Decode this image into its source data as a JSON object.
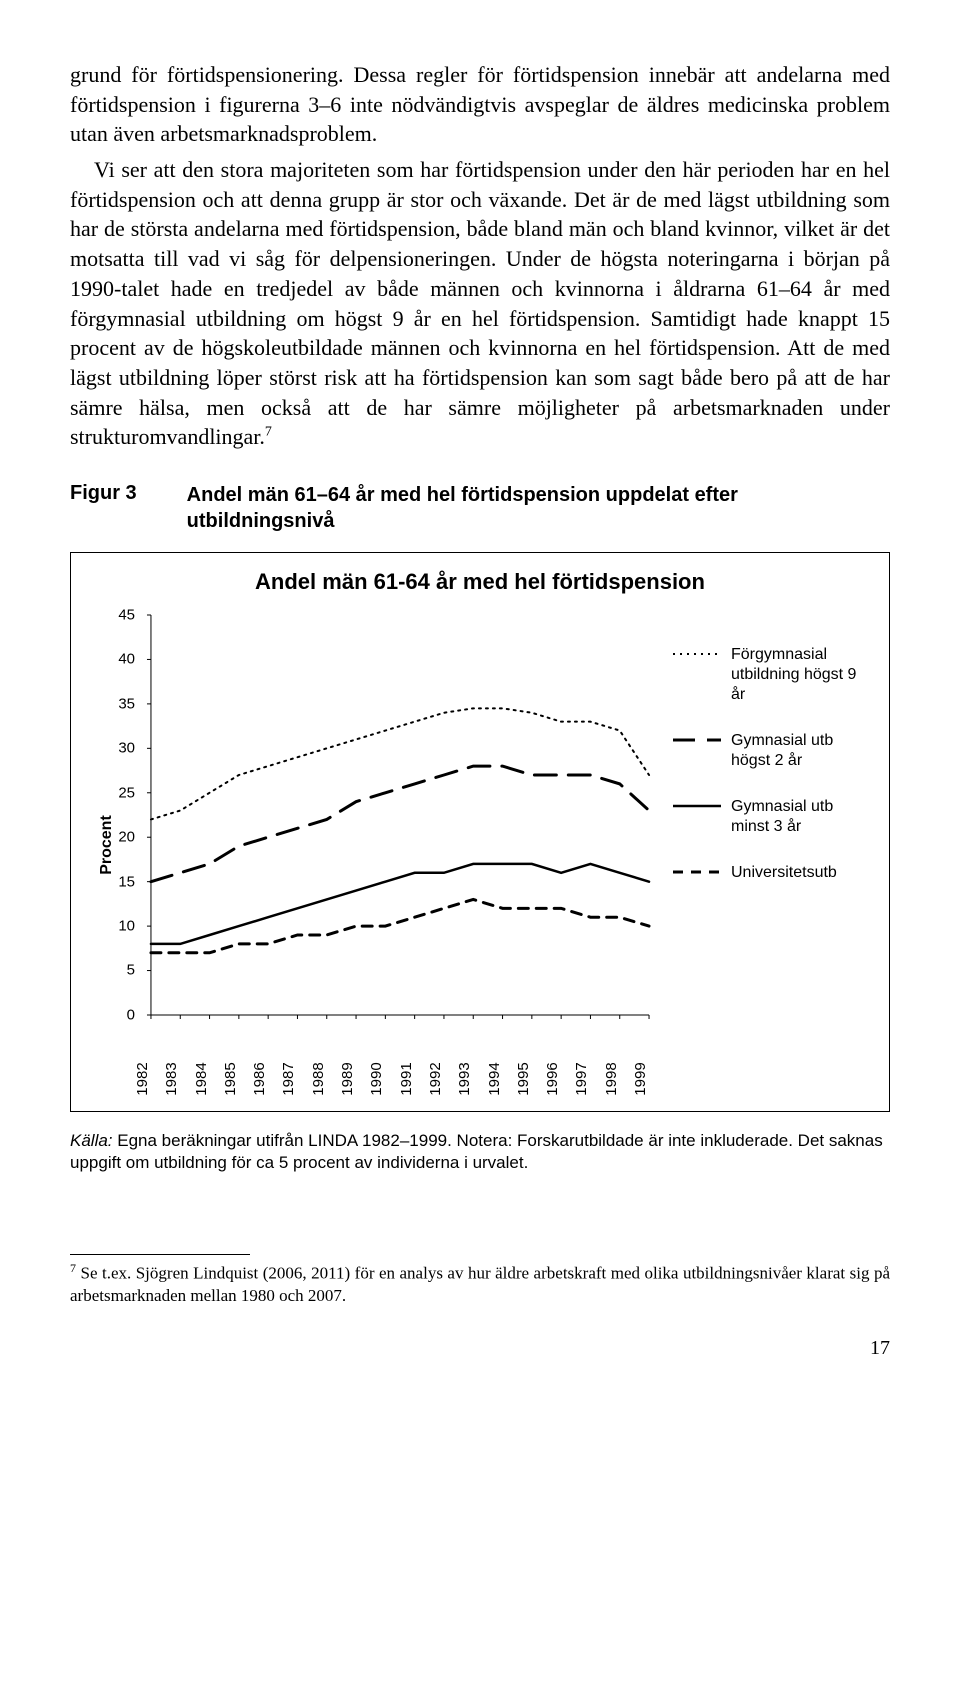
{
  "body_paragraph": "grund för förtidspensionering. Dessa regler för förtidspension innebär att andelarna med förtidspension i figurerna 3–6 inte nödvändigtvis avspeglar de äldres medicinska problem utan även arbetsmarknadsproblem.",
  "body_paragraph2_part1": "Vi ser att den stora majoriteten som har förtidspension under den här perioden har en hel förtidspension och att denna grupp är stor och växande. Det är de med lägst utbildning som har de största andelarna med förtidspension, både bland män och bland kvinnor, vilket är det motsatta till vad vi såg för delpensioneringen. Under de högsta noteringarna i början på 1990-talet hade en tredjedel av både männen och kvinnorna i åldrarna 61–64 år med förgymnasial utbildning om högst 9 år en hel förtidspension. Samtidigt hade knappt 15 procent av de högskoleutbildade männen och kvinnorna en hel förtidspension. Att de med lägst utbildning löper störst risk att ha förtidspension kan som sagt både bero på att de har sämre hälsa, men också att de har sämre möjligheter på arbetsmarknaden under strukturomvandlingar.",
  "body_sup": "7",
  "figure_label": "Figur 3",
  "figure_caption": "Andel män 61–64 år med hel förtidspension uppdelat efter utbildningsnivå",
  "chart": {
    "title": "Andel män 61-64 år med hel förtidspension",
    "y_label": "Procent",
    "y_min": 0,
    "y_max": 45,
    "y_step": 5,
    "x_labels": [
      "1982",
      "1983",
      "1984",
      "1985",
      "1986",
      "1987",
      "1988",
      "1989",
      "1990",
      "1991",
      "1992",
      "1993",
      "1994",
      "1995",
      "1996",
      "1997",
      "1998",
      "1999"
    ],
    "series": [
      {
        "name": "Förgymnasial utbildning högst 9 år",
        "style": "dotted",
        "weight": 2,
        "values": [
          22,
          23,
          25,
          27,
          28,
          29,
          30,
          31,
          32,
          33,
          34,
          34.5,
          34.5,
          34,
          33,
          33,
          32,
          27
        ]
      },
      {
        "name": "Gymnasial utb högst 2 år",
        "style": "longdash",
        "weight": 3,
        "values": [
          15,
          16,
          17,
          19,
          20,
          21,
          22,
          24,
          25,
          26,
          27,
          28,
          28,
          27,
          27,
          27,
          26,
          23
        ]
      },
      {
        "name": "Gymnasial utb minst 3 år",
        "style": "solid",
        "weight": 2.5,
        "values": [
          8,
          8,
          9,
          10,
          11,
          12,
          13,
          14,
          15,
          16,
          16,
          17,
          17,
          17,
          16,
          17,
          16,
          15
        ]
      },
      {
        "name": "Universitetsutb",
        "style": "dash",
        "weight": 3,
        "values": [
          7,
          7,
          7,
          8,
          8,
          9,
          9,
          10,
          10,
          11,
          12,
          13,
          12,
          12,
          12,
          11,
          11,
          10
        ]
      }
    ],
    "axis_color": "#000000",
    "background": "#ffffff"
  },
  "source_italic": "Källa:",
  "source_text": " Egna beräkningar utifrån LINDA 1982–1999. Notera: Forskarutbildade är inte inkluderade. Det saknas uppgift om utbildning för ca 5 procent av individerna i urvalet.",
  "footnote_sup": "7",
  "footnote_text": " Se t.ex. Sjögren Lindquist (2006, 2011) för en analys av hur äldre arbetskraft med olika utbildningsnivåer klarat sig på arbetsmarknaden mellan 1980 och 2007.",
  "page_number": "17"
}
